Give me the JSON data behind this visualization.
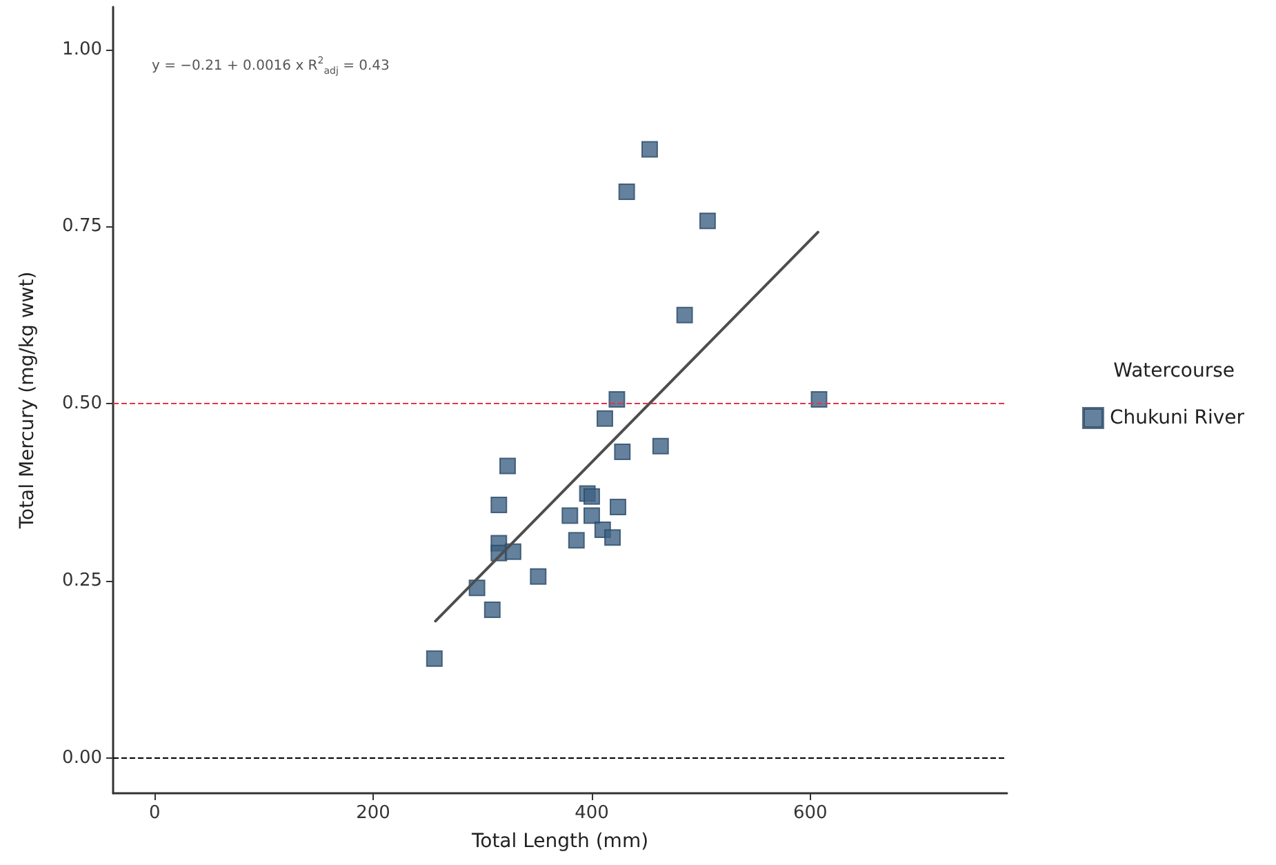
{
  "chart_data": {
    "type": "scatter",
    "xlabel": "Total Length (mm)",
    "ylabel": "Total Mercury (mg/kg wwt)",
    "legend_title": "Watercourse",
    "legend": "right",
    "grid": false,
    "marker": "square",
    "xlim": [
      -38,
      780
    ],
    "ylim": [
      -0.05,
      1.06
    ],
    "xticks": [
      0,
      200,
      400,
      600
    ],
    "yticks": [
      {
        "value": 0,
        "label": "0.00"
      },
      {
        "value": 0.25,
        "label": "0.25"
      },
      {
        "value": 0.5,
        "label": "0.50"
      },
      {
        "value": 0.75,
        "label": "0.75"
      },
      {
        "value": 1,
        "label": "1.00"
      }
    ],
    "annotations": [
      "y = −0.21 + 0.0016 x   R$^{2}$$_{adj}$ = 0.43"
    ],
    "ref_lines": [
      {
        "axis": "y",
        "value": 0.5,
        "label": null,
        "color": "#e8334a",
        "line_style": "dashed"
      },
      {
        "axis": "y",
        "value": 0,
        "label": null,
        "color": "#000000",
        "line_style": "dashed"
      }
    ],
    "series": [
      {
        "name": "Chukuni River",
        "color": "#3d6184",
        "x": [
          256,
          453,
          432,
          506,
          485,
          608,
          423,
          412,
          428,
          463,
          323,
          315,
          315,
          315,
          328,
          295,
          309,
          351,
          396,
          400,
          380,
          400,
          424,
          386,
          410,
          419
        ],
        "values": [
          0.14,
          0.859,
          0.799,
          0.758,
          0.625,
          0.506,
          0.506,
          0.479,
          0.432,
          0.44,
          0.412,
          0.357,
          0.303,
          0.289,
          0.291,
          0.24,
          0.209,
          0.256,
          0.373,
          0.369,
          0.342,
          0.342,
          0.354,
          0.307,
          0.322,
          0.311
        ]
      },
      {
        "type": "line",
        "color": "#4d4d4d",
        "marker": "none",
        "line_style": "solid",
        "x": [
          257,
          607
        ],
        "values": [
          0.193,
          0.742
        ]
      }
    ]
  }
}
